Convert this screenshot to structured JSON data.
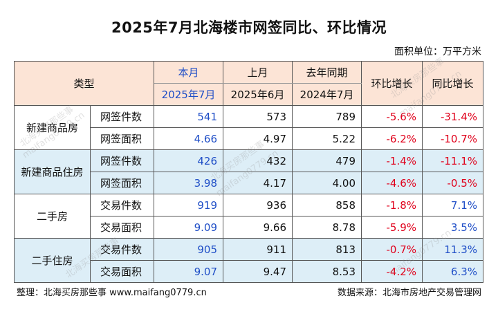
{
  "title": "2025年7月北海楼市网签同比、环比情况",
  "unit": "面积单位：万平方米",
  "headers": {
    "type": "类型",
    "cur": "本月",
    "cur_date": "2025年7月",
    "prev": "上月",
    "prev_date": "2025年6月",
    "lastyear": "去年同期",
    "lastyear_date": "2024年7月",
    "mom": "环比增长",
    "yoy": "同比增长"
  },
  "groups": [
    {
      "name": "新建商品房",
      "rows": [
        {
          "metric": "网签件数",
          "cur": "541",
          "prev": "573",
          "lastyear": "789",
          "mom": "-5.6%",
          "yoy": "-31.4%"
        },
        {
          "metric": "网签面积",
          "cur": "4.66",
          "prev": "4.97",
          "lastyear": "5.22",
          "mom": "-6.2%",
          "yoy": "-10.7%"
        }
      ]
    },
    {
      "name": "新建商品住房",
      "rows": [
        {
          "metric": "网签件数",
          "cur": "426",
          "prev": "432",
          "lastyear": "479",
          "mom": "-1.4%",
          "yoy": "-11.1%"
        },
        {
          "metric": "网签面积",
          "cur": "3.98",
          "prev": "4.17",
          "lastyear": "4.00",
          "mom": "-4.6%",
          "yoy": "-0.5%"
        }
      ]
    },
    {
      "name": "二手房",
      "rows": [
        {
          "metric": "交易件数",
          "cur": "919",
          "prev": "936",
          "lastyear": "858",
          "mom": "-1.8%",
          "yoy": "7.1%"
        },
        {
          "metric": "交易面积",
          "cur": "9.09",
          "prev": "9.66",
          "lastyear": "8.78",
          "mom": "-5.9%",
          "yoy": "3.5%"
        }
      ]
    },
    {
      "name": "二手住房",
      "rows": [
        {
          "metric": "交易件数",
          "cur": "905",
          "prev": "911",
          "lastyear": "813",
          "mom": "-0.7%",
          "yoy": "11.3%"
        },
        {
          "metric": "交易面积",
          "cur": "9.07",
          "prev": "9.47",
          "lastyear": "8.53",
          "mom": "-4.2%",
          "yoy": "6.3%"
        }
      ]
    }
  ],
  "footer": {
    "left": "整理：北海买房那些事 www.maifang0779.cn",
    "right": "数据来源：北海市房地产交易管理网"
  },
  "watermark": {
    "text_cn": "北海买房那些事",
    "text_url": "maifang0779.cn"
  },
  "colors": {
    "header_bg": "#fce4d6",
    "alt_row_bg": "#ddeef7",
    "current_value": "#1f4ec7",
    "negative": "#e0001b",
    "positive": "#1f4ec7"
  }
}
